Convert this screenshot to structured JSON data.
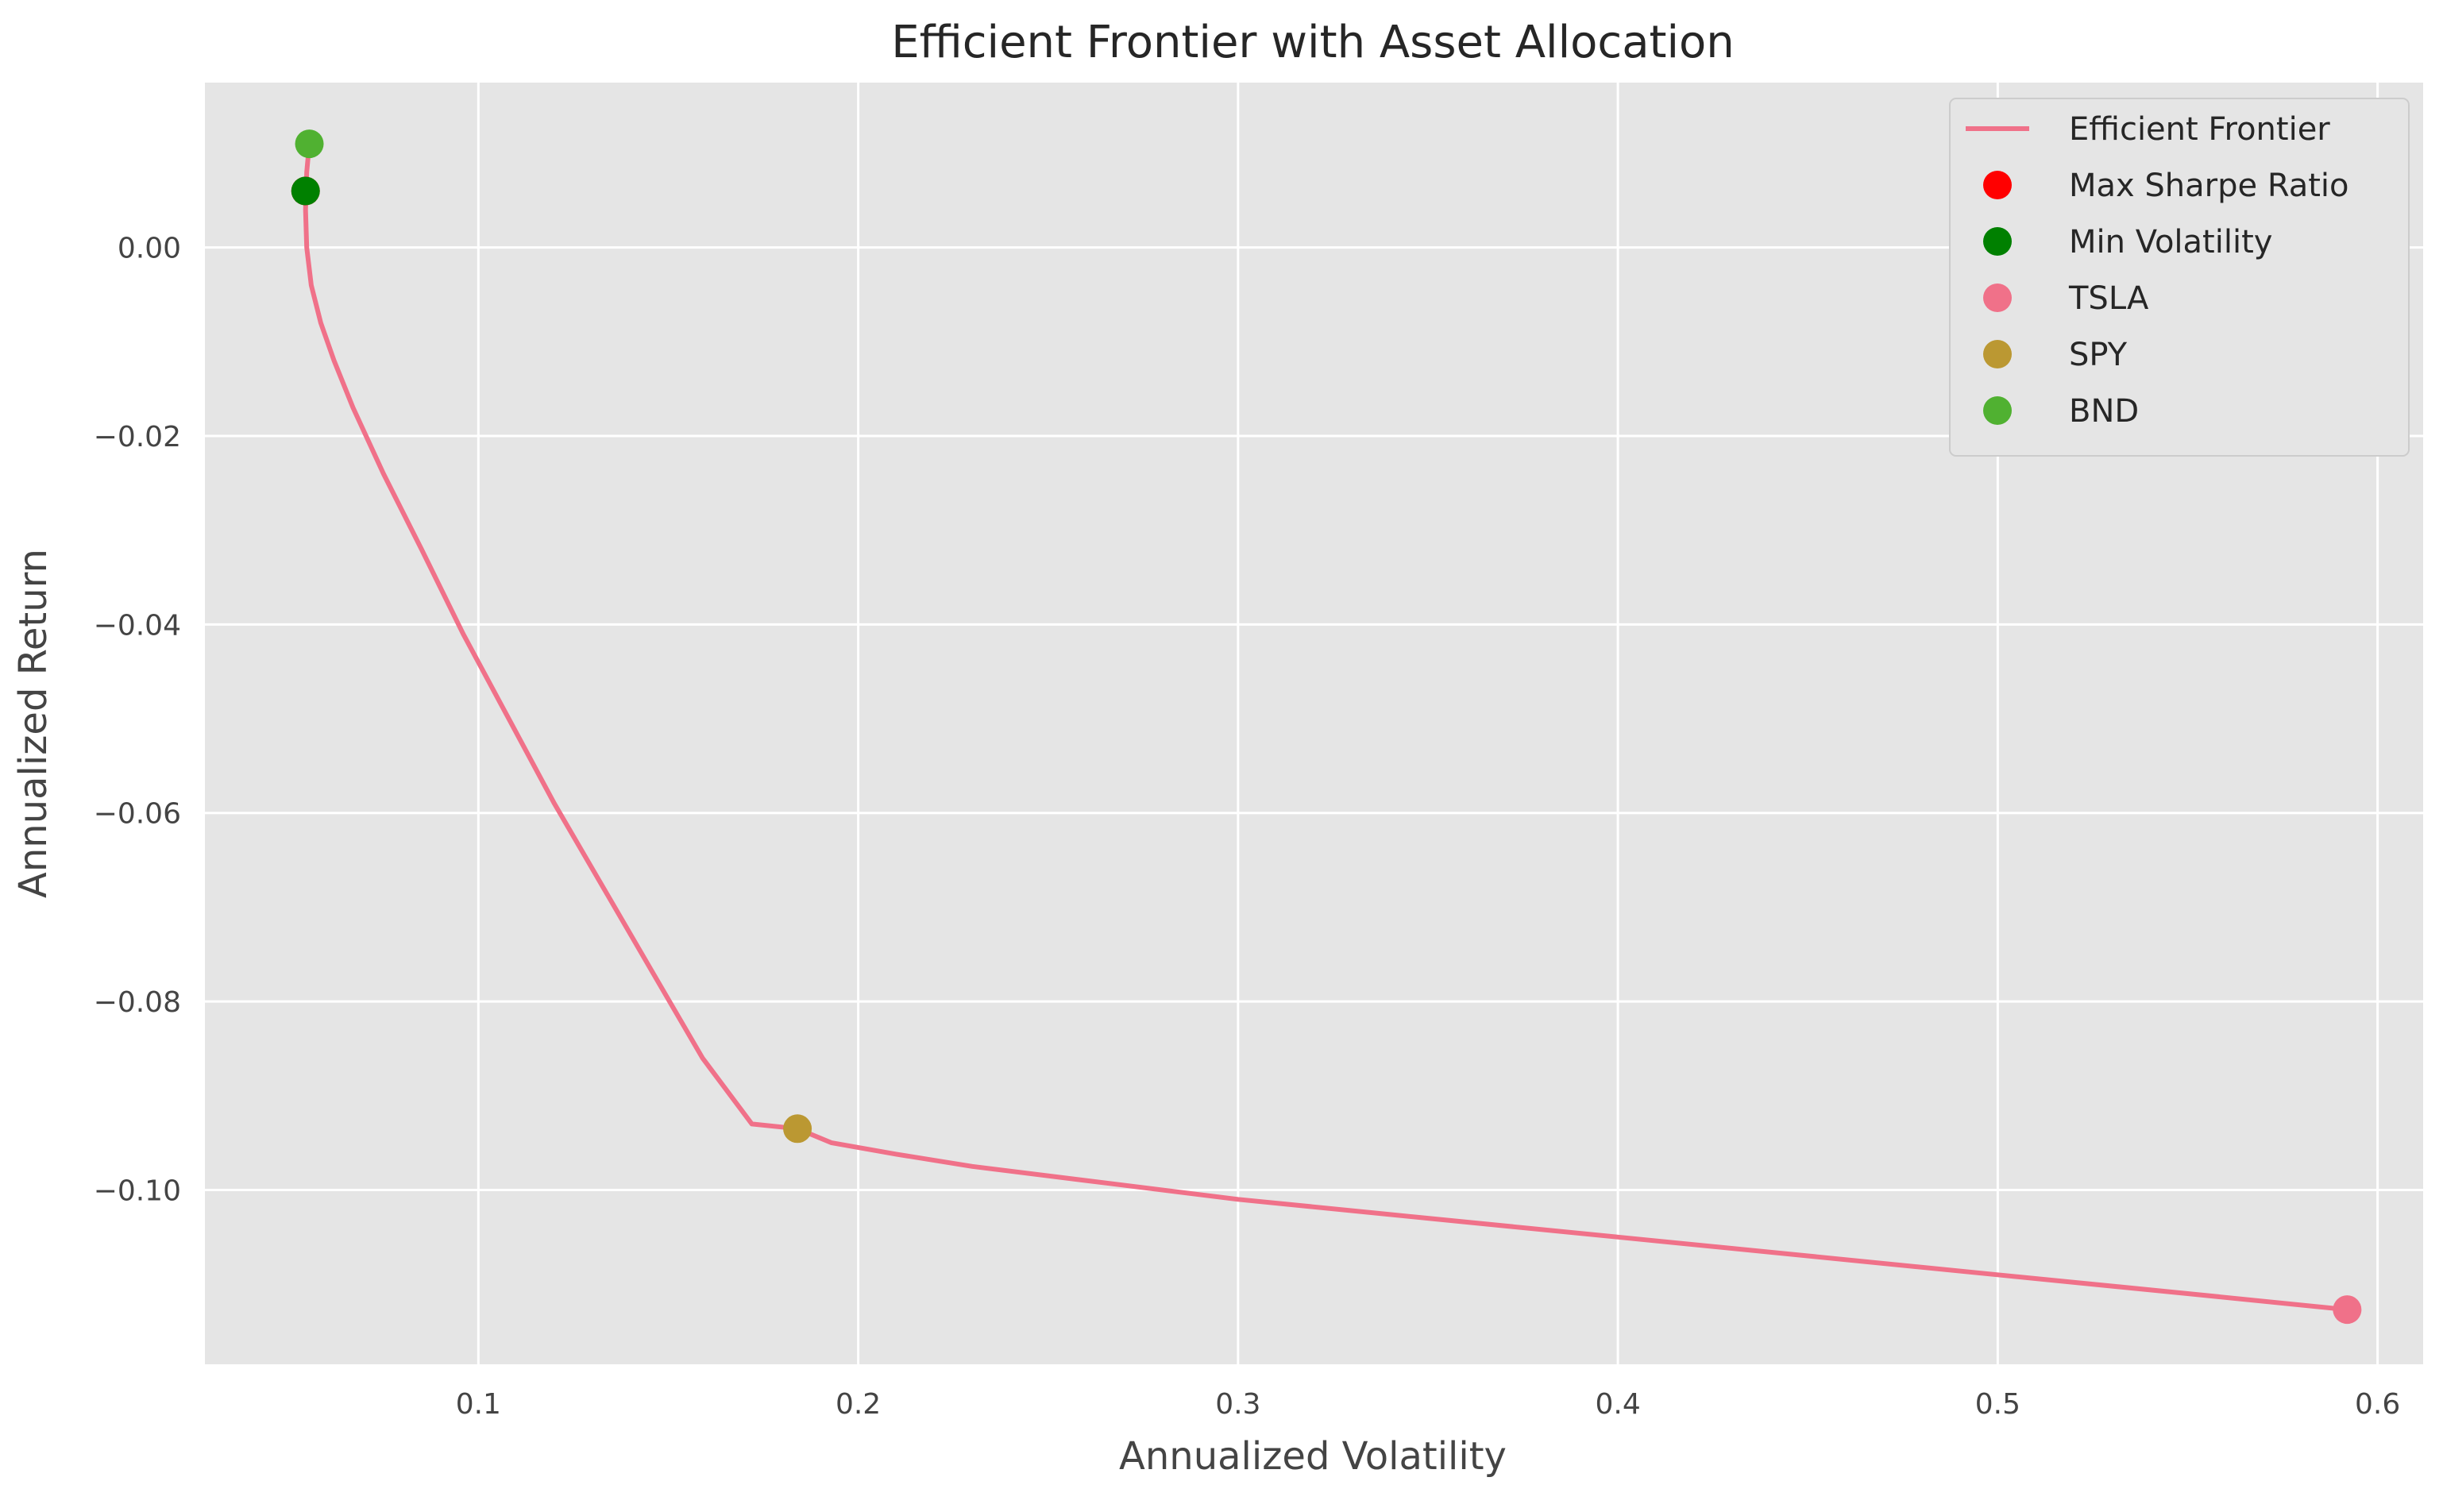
{
  "chart_data": {
    "type": "line",
    "title": "Efficient Frontier with Asset Allocation",
    "xlabel": "Annualized Volatility",
    "ylabel": "Annualized Return",
    "xlim": [
      0.028,
      0.612
    ],
    "ylim": [
      -0.1185,
      0.0175
    ],
    "xticks": [
      0.1,
      0.2,
      0.3,
      0.4,
      0.5,
      0.6
    ],
    "xtick_labels": [
      "0.1",
      "0.2",
      "0.3",
      "0.4",
      "0.5",
      "0.6"
    ],
    "yticks": [
      0.0,
      -0.02,
      -0.04,
      -0.06,
      -0.08,
      -0.1
    ],
    "ytick_labels": [
      "0.00",
      "−0.02",
      "−0.04",
      "−0.06",
      "−0.08",
      "−0.10"
    ],
    "grid": true,
    "legend_position": "top-right",
    "frontier": {
      "name": "Efficient Frontier",
      "color": "#f07189",
      "x": [
        0.0555,
        0.0548,
        0.0545,
        0.0548,
        0.056,
        0.0585,
        0.062,
        0.067,
        0.075,
        0.085,
        0.096,
        0.108,
        0.12,
        0.133,
        0.146,
        0.159,
        0.172,
        0.184,
        0.193,
        0.21,
        0.23,
        0.26,
        0.3,
        0.35,
        0.4,
        0.45,
        0.5,
        0.55,
        0.592
      ],
      "y": [
        0.011,
        0.008,
        0.004,
        0.0,
        -0.004,
        -0.008,
        -0.012,
        -0.017,
        -0.024,
        -0.032,
        -0.041,
        -0.05,
        -0.059,
        -0.068,
        -0.077,
        -0.086,
        -0.093,
        -0.0935,
        -0.095,
        -0.0962,
        -0.0975,
        -0.099,
        -0.101,
        -0.103,
        -0.105,
        -0.107,
        -0.109,
        -0.111,
        -0.1127
      ]
    },
    "points": [
      {
        "name": "Max Sharpe Ratio",
        "x": 0.0545,
        "y": 0.006,
        "color": "#ff0000"
      },
      {
        "name": "Min Volatility",
        "x": 0.0545,
        "y": 0.006,
        "color": "#008000"
      },
      {
        "name": "TSLA",
        "x": 0.592,
        "y": -0.1127,
        "color": "#f07189"
      },
      {
        "name": "SPY",
        "x": 0.184,
        "y": -0.0935,
        "color": "#bb9832"
      },
      {
        "name": "BND",
        "x": 0.0555,
        "y": 0.011,
        "color": "#50b131"
      }
    ]
  }
}
